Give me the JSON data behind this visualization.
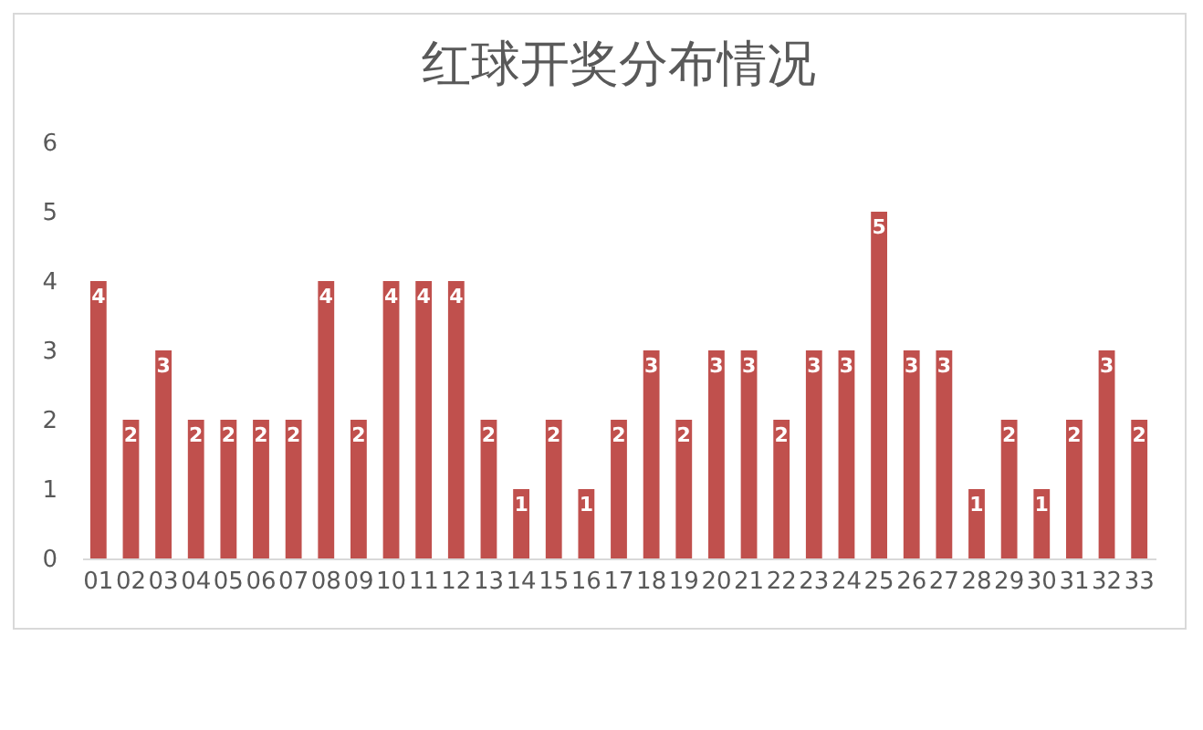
{
  "chart_data": {
    "type": "bar",
    "title": "红球开奖分布情况",
    "categories": [
      "01",
      "02",
      "03",
      "04",
      "05",
      "06",
      "07",
      "08",
      "09",
      "10",
      "11",
      "12",
      "13",
      "14",
      "15",
      "16",
      "17",
      "18",
      "19",
      "20",
      "21",
      "22",
      "23",
      "24",
      "25",
      "26",
      "27",
      "28",
      "29",
      "30",
      "31",
      "32",
      "33"
    ],
    "values": [
      4,
      2,
      3,
      2,
      2,
      2,
      2,
      4,
      2,
      4,
      4,
      4,
      2,
      1,
      2,
      1,
      2,
      3,
      2,
      3,
      3,
      2,
      3,
      3,
      5,
      3,
      3,
      1,
      2,
      1,
      2,
      3,
      2
    ],
    "color": "#c0504d",
    "ylim": [
      0,
      6
    ],
    "yticks": [
      0,
      1,
      2,
      3,
      4,
      5,
      6
    ],
    "grid": false,
    "data_labels": true
  }
}
